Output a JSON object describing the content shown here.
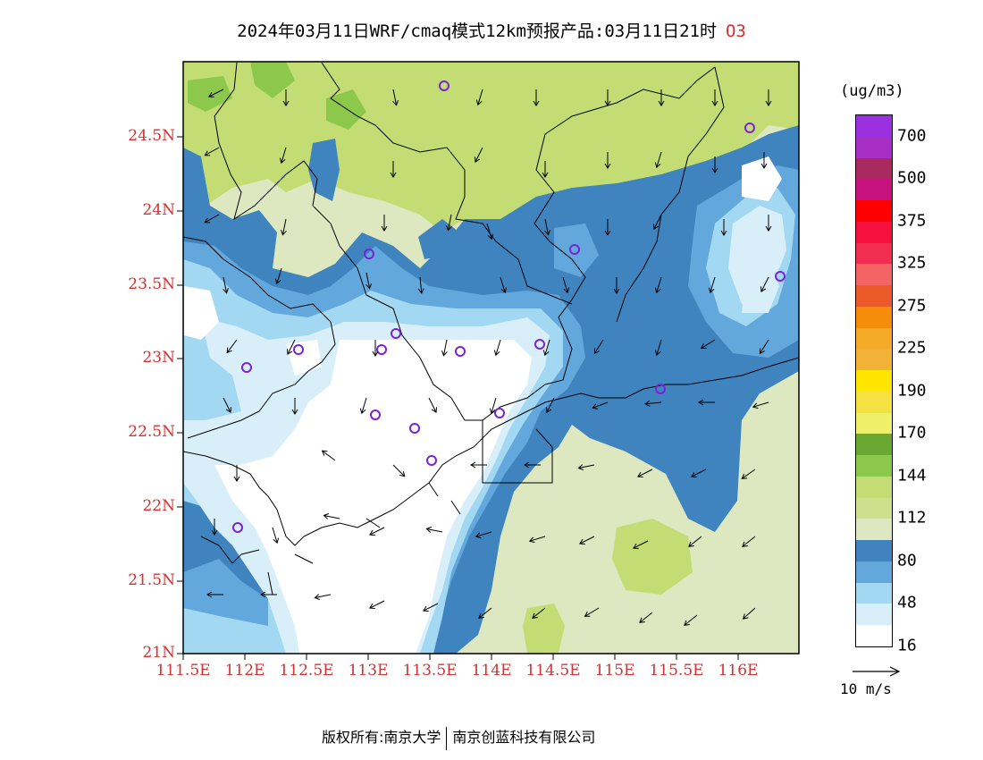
{
  "title": {
    "text": "2024年03月11日WRF/cmaq模式12km预报产品:03月11日21时",
    "variable": "O3"
  },
  "map": {
    "lat_labels": [
      "24.5N",
      "24N",
      "23.5N",
      "23N",
      "22.5N",
      "22N",
      "21.5N",
      "21N"
    ],
    "lon_labels": [
      "111.5E",
      "112E",
      "112.5E",
      "113E",
      "113.5E",
      "114E",
      "114.5E",
      "115E",
      "115.5E",
      "116E"
    ],
    "lat_range": [
      21,
      25
    ],
    "lon_range": [
      111.5,
      116.5
    ],
    "background_level": "80-112",
    "station_marker": "circle",
    "wind_arrows": "present"
  },
  "legend": {
    "unit": "(ug/m3)",
    "labels": [
      "700",
      "500",
      "375",
      "325",
      "275",
      "225",
      "190",
      "170",
      "144",
      "112",
      "80",
      "48",
      "16"
    ],
    "colors": [
      "#9b30e0",
      "#a72fc6",
      "#a82a5e",
      "#c8127f",
      "#ff0000",
      "#f5103d",
      "#f22e50",
      "#f56464",
      "#ec5a2a",
      "#f58c0a",
      "#f5aa28",
      "#f2b237",
      "#ffe600",
      "#f5e141",
      "#eef06a",
      "#6aa832",
      "#8cc84b",
      "#c3dc74",
      "#cfe08d",
      "#dde8c0",
      "#3f84bf",
      "#62a8dc",
      "#a3d8f2",
      "#d8eff9",
      "#ffffff"
    ]
  },
  "reference_vector": {
    "label": "10 m/s"
  },
  "footer": {
    "left": "版权所有:南京大学",
    "right": "南京创蓝科技有限公司"
  }
}
